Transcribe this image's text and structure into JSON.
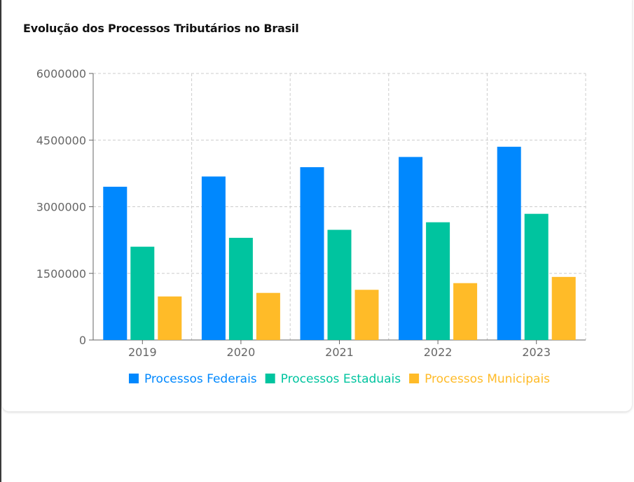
{
  "chart_data": {
    "type": "bar",
    "title": "Evolução dos Processos Tributários no Brasil",
    "categories": [
      "2019",
      "2020",
      "2021",
      "2022",
      "2023"
    ],
    "series": [
      {
        "name": "Processos Federais",
        "color": "#0088FE",
        "values": [
          3450000,
          3680000,
          3890000,
          4120000,
          4350000
        ]
      },
      {
        "name": "Processos Estaduais",
        "color": "#00C49F",
        "values": [
          2100000,
          2300000,
          2480000,
          2650000,
          2840000
        ]
      },
      {
        "name": "Processos Municipais",
        "color": "#FFBB28",
        "values": [
          980000,
          1060000,
          1130000,
          1280000,
          1420000
        ]
      }
    ],
    "ylim": [
      0,
      6000000
    ],
    "yticks": [
      0,
      1500000,
      3000000,
      4500000,
      6000000
    ],
    "grid": true,
    "legend_position": "bottom-center"
  }
}
